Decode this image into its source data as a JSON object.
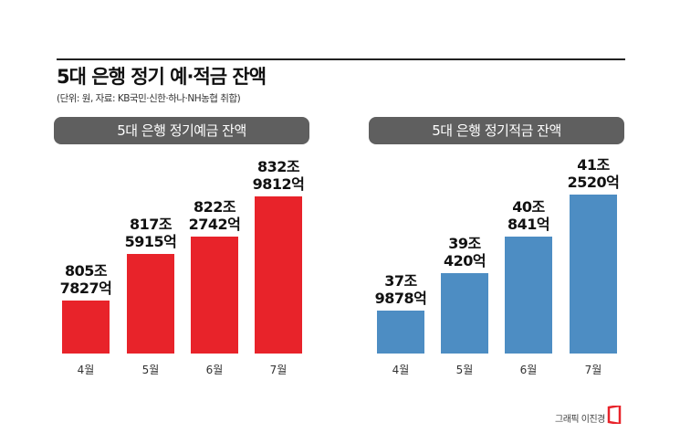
{
  "title": "5대 은행 정기 예·적금 잔액",
  "subtitle": "(단위: 원, 자료: KB국민·신한·하나·NH농협 취합)",
  "credit": "그래픽 이진경",
  "chart_data": [
    {
      "type": "bar",
      "title": "5대 은행 정기예금 잔액",
      "categories": [
        "4월",
        "5월",
        "6월",
        "7월"
      ],
      "values": [
        8057827,
        8175915,
        8222742,
        8329812
      ],
      "value_unit": "억원",
      "labels": [
        [
          "805조",
          "7827억"
        ],
        [
          "817조",
          "5915억"
        ],
        [
          "822조",
          "2742억"
        ],
        [
          "832조",
          "9812억"
        ]
      ],
      "color": "#e8232a",
      "grid": false
    },
    {
      "type": "bar",
      "title": "5대 은행 정기적금 잔액",
      "categories": [
        "4월",
        "5월",
        "6월",
        "7월"
      ],
      "values": [
        379878,
        390420,
        400841,
        412520
      ],
      "value_unit": "억원",
      "labels": [
        [
          "37조",
          "9878억"
        ],
        [
          "39조",
          "420억"
        ],
        [
          "40조",
          "841억"
        ],
        [
          "41조",
          "2520억"
        ]
      ],
      "color": "#4d8dc3",
      "grid": false
    }
  ]
}
